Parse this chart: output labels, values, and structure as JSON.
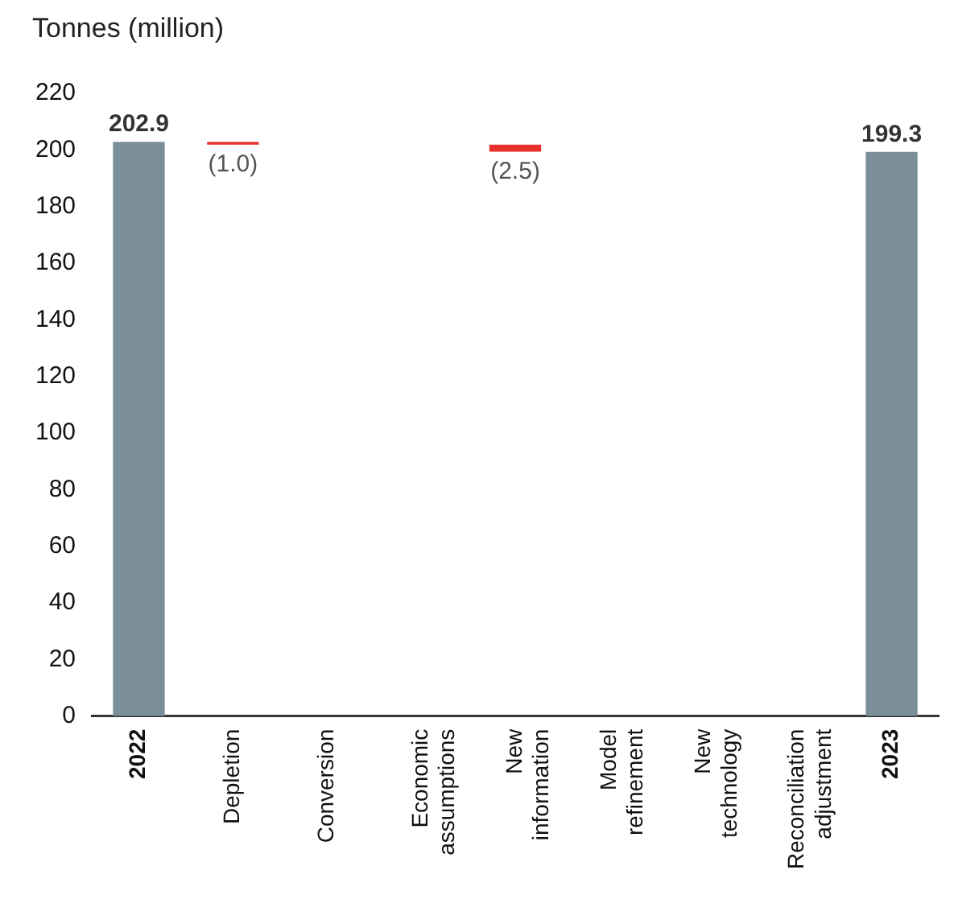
{
  "chart_data": {
    "type": "bar",
    "ylabel": "Tonnes (million)",
    "categories": [
      "2022",
      "Depletion",
      "Conversion",
      "Economic assumptions",
      "New information",
      "Model refinement",
      "New technology",
      "Reconciliation adjustment",
      "2023"
    ],
    "values": [
      202.9,
      -1.0,
      0,
      0,
      -2.5,
      0,
      0,
      0,
      199.3
    ],
    "base": [
      0,
      202.9,
      null,
      null,
      201.9,
      null,
      null,
      null,
      0
    ],
    "colors": [
      "#7a8f99",
      "#e8312a",
      "#e8312a",
      "#e8312a",
      "#e8312a",
      "#e8312a",
      "#e8312a",
      "#e8312a",
      "#7a8f99"
    ],
    "value_labels": [
      "202.9",
      "(1.0)",
      null,
      null,
      "(2.5)",
      null,
      null,
      null,
      "199.3"
    ],
    "ylim": [
      0,
      220
    ],
    "yticks": [
      0,
      20,
      40,
      60,
      80,
      100,
      120,
      140,
      160,
      180,
      200,
      220
    ],
    "grid": false,
    "legend": false
  }
}
